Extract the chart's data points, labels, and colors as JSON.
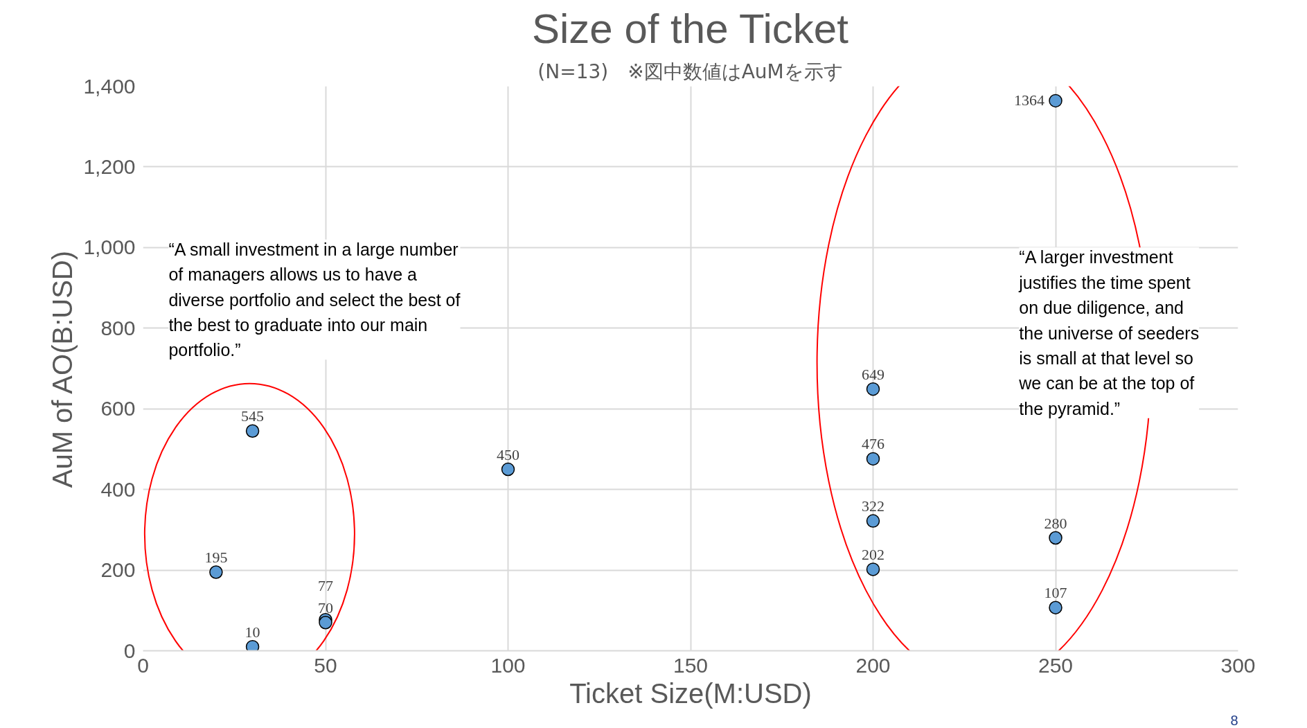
{
  "chart_data": {
    "type": "scatter",
    "title": "Size of the Ticket",
    "subtitle": "(N=13)　※図中数値はAuMを示す",
    "xlabel": "Ticket Size(M:USD)",
    "ylabel": "AuM of AO(B:USD)",
    "x": [
      20,
      30,
      30,
      50,
      50,
      100,
      200,
      200,
      200,
      200,
      250,
      250,
      250
    ],
    "values": [
      195,
      545,
      10,
      77,
      70,
      450,
      649,
      476,
      322,
      202,
      1364,
      280,
      107
    ],
    "color": "#5b9bd5",
    "marker": "circle",
    "data_labels": true,
    "xlim": [
      0,
      300
    ],
    "xticks": [
      0,
      50,
      100,
      150,
      200,
      250,
      300
    ],
    "ylim": [
      0,
      1400
    ],
    "yticks": [
      {
        "value": 0,
        "label": "0"
      },
      {
        "value": 200,
        "label": "200"
      },
      {
        "value": 400,
        "label": "400"
      },
      {
        "value": 600,
        "label": "600"
      },
      {
        "value": 800,
        "label": "800"
      },
      {
        "value": 1000,
        "label": "1,000"
      },
      {
        "value": 1200,
        "label": "1,200"
      },
      {
        "value": 1400,
        "label": "1,400"
      }
    ],
    "grid": true,
    "annotations": [
      "“A small investment in a large number\nof managers allows us to have a\ndiverse portfolio and select the best of\nthe best to graduate into our main\nportfolio.”",
      "“A larger investment\njustifies the time spent\non due diligence, and\nthe universe of seeders\nis small at that level so\nwe can be at the top of\nthe pyramid.”",
      "8"
    ]
  }
}
